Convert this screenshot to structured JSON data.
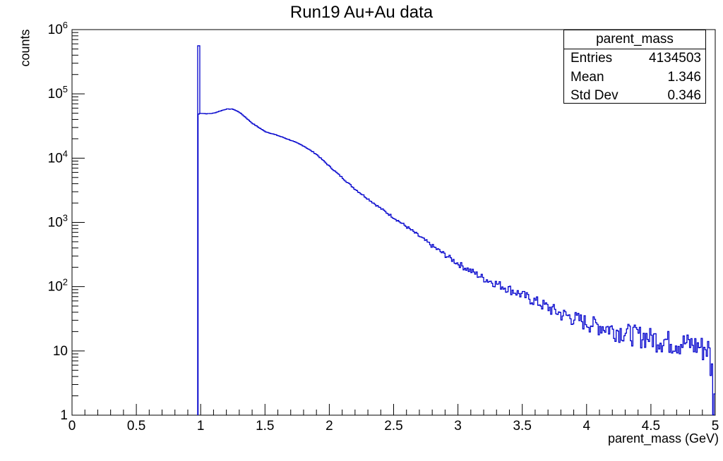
{
  "chart_data": {
    "type": "histogram",
    "title": "Run19 Au+Au data",
    "xlabel": "parent_mass (GeV)",
    "ylabel": "counts",
    "xlim": [
      0,
      5
    ],
    "ylim": [
      1,
      1000000
    ],
    "y_scale": "log",
    "x_ticks": [
      "0",
      "0.5",
      "1",
      "1.5",
      "2",
      "2.5",
      "3",
      "3.5",
      "4",
      "4.5",
      "5"
    ],
    "y_ticks": [
      "1",
      "10",
      "10^2",
      "10^3",
      "10^4",
      "10^5",
      "10^6"
    ],
    "line_color": "#0000cc",
    "spike": {
      "x": 0.985,
      "counts": 560000
    },
    "x": [
      0.98,
      1.0,
      1.05,
      1.1,
      1.15,
      1.2,
      1.25,
      1.3,
      1.35,
      1.4,
      1.5,
      1.6,
      1.7,
      1.8,
      1.9,
      2.0,
      2.2,
      2.4,
      2.6,
      2.8,
      3.0,
      3.2,
      3.4,
      3.6,
      3.8,
      4.0,
      4.2,
      4.4,
      4.6,
      4.8,
      4.95,
      5.0
    ],
    "counts": [
      48000,
      50000,
      49000,
      50000,
      54000,
      58000,
      58000,
      52000,
      43000,
      35000,
      26000,
      22500,
      19000,
      15500,
      11500,
      7500,
      3300,
      1650,
      860,
      430,
      230,
      135,
      92,
      60,
      38,
      28,
      22,
      18,
      15,
      13,
      11,
      2
    ]
  },
  "stats_box": {
    "title": "parent_mass",
    "rows": [
      {
        "label": "Entries",
        "value": "4134503"
      },
      {
        "label": "Mean",
        "value": "1.346"
      },
      {
        "label": "Std Dev",
        "value": "0.346"
      }
    ]
  }
}
